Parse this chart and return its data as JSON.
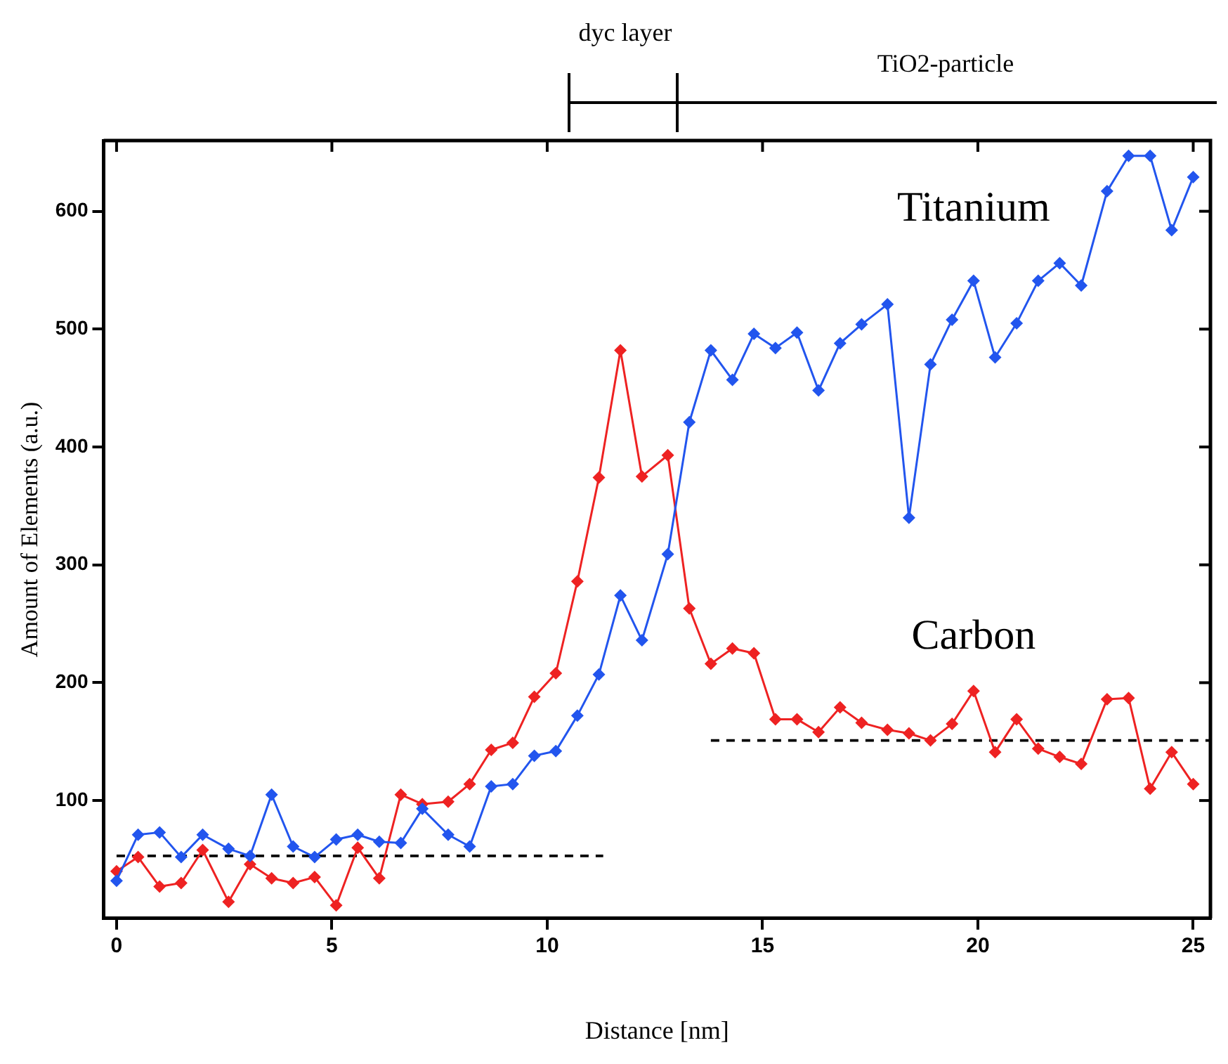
{
  "chart_data": {
    "type": "line",
    "xlabel": "Distance [nm]",
    "ylabel": "Amount of Elements (a.u.)",
    "xlim": [
      -0.3,
      25.4
    ],
    "ylim": [
      0,
      660
    ],
    "xticks": [
      0,
      5,
      10,
      15,
      20,
      25
    ],
    "yticks": [
      100,
      200,
      300,
      400,
      500,
      600
    ],
    "grid": false,
    "legend": false,
    "marker": "diamond",
    "line_style": "solid",
    "x": [
      0,
      0.5,
      1,
      1.5,
      2,
      2.6,
      3.1,
      3.6,
      4.1,
      4.6,
      5.1,
      5.6,
      6.1,
      6.6,
      7.1,
      7.7,
      8.2,
      8.7,
      9.2,
      9.7,
      10.2,
      10.7,
      11.2,
      11.7,
      12.2,
      12.8,
      13.3,
      13.8,
      14.3,
      14.8,
      15.3,
      15.8,
      16.3,
      16.8,
      17.3,
      17.9,
      18.4,
      18.9,
      19.4,
      19.9,
      20.4,
      20.9,
      21.4,
      21.9,
      22.4,
      23,
      23.5,
      24,
      24.5,
      25
    ],
    "series": [
      {
        "name": "Titanium",
        "color": "#2255ee",
        "values": [
          32,
          71,
          73,
          52,
          71,
          59,
          53,
          105,
          61,
          52,
          67,
          71,
          65,
          64,
          93,
          71,
          61,
          112,
          114,
          138,
          142,
          172,
          207,
          274,
          236,
          309,
          421,
          482,
          457,
          496,
          484,
          497,
          448,
          488,
          504,
          521,
          340,
          470,
          508,
          541,
          476,
          505,
          541,
          556,
          537,
          617,
          647,
          647,
          584,
          629
        ]
      },
      {
        "name": "Carbon",
        "color": "#ee2222",
        "values": [
          40,
          52,
          27,
          30,
          58,
          14,
          46,
          34,
          30,
          35,
          11,
          60,
          34,
          105,
          97,
          99,
          114,
          143,
          149,
          188,
          208,
          286,
          374,
          482,
          375,
          393,
          263,
          216,
          229,
          225,
          169,
          169,
          158,
          179,
          166,
          160,
          157,
          151,
          165,
          193,
          141,
          169,
          144,
          137,
          131,
          186,
          187,
          110,
          141,
          114
        ]
      },
      {
        "type": "line",
        "color": "#000000",
        "line_style": "dashed",
        "marker": "none",
        "x": [
          0,
          11.3
        ],
        "values": [
          53,
          53
        ]
      },
      {
        "type": "line",
        "color": "#000000",
        "line_style": "dashed",
        "marker": "none",
        "x": [
          13.8,
          25.4
        ],
        "values": [
          151,
          151
        ]
      }
    ],
    "annotations": [
      "dyc layer",
      "TiO2-particle"
    ]
  }
}
